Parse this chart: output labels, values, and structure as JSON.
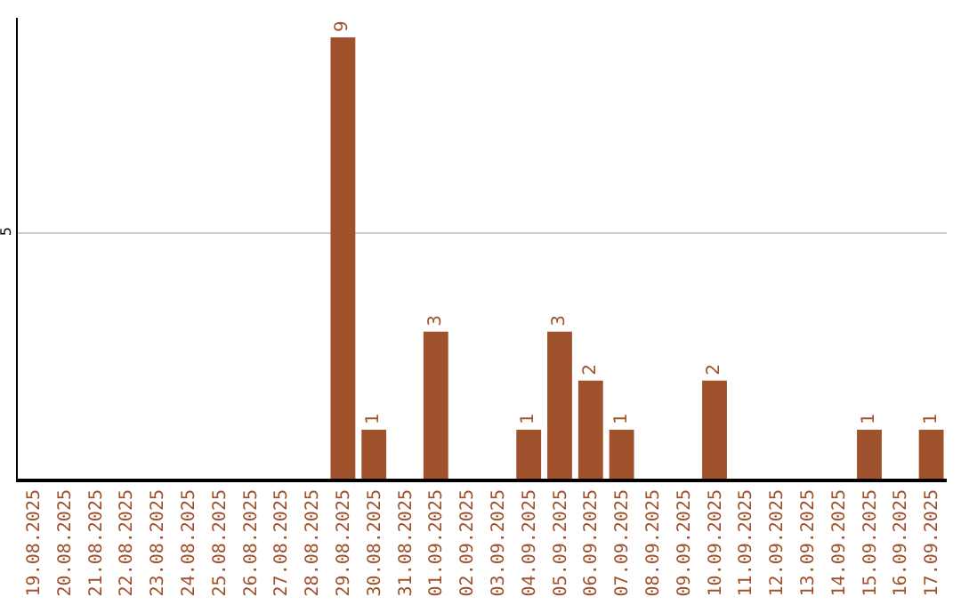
{
  "chart_data": {
    "type": "bar",
    "categories": [
      "19.08.2025",
      "20.08.2025",
      "21.08.2025",
      "22.08.2025",
      "23.08.2025",
      "24.08.2025",
      "25.08.2025",
      "26.08.2025",
      "27.08.2025",
      "28.08.2025",
      "29.08.2025",
      "30.08.2025",
      "31.08.2025",
      "01.09.2025",
      "02.09.2025",
      "03.09.2025",
      "04.09.2025",
      "05.09.2025",
      "06.09.2025",
      "07.09.2025",
      "08.09.2025",
      "09.09.2025",
      "10.09.2025",
      "11.09.2025",
      "12.09.2025",
      "13.09.2025",
      "14.09.2025",
      "15.09.2025",
      "16.09.2025",
      "17.09.2025"
    ],
    "values": [
      0,
      0,
      0,
      0,
      0,
      0,
      0,
      0,
      0,
      0,
      9,
      1,
      0,
      3,
      0,
      0,
      1,
      3,
      2,
      1,
      0,
      0,
      2,
      0,
      0,
      0,
      0,
      1,
      0,
      1
    ],
    "value_labels": [
      null,
      null,
      null,
      null,
      null,
      null,
      null,
      null,
      null,
      null,
      "9",
      "1",
      null,
      "3",
      null,
      null,
      "1",
      "3",
      "2",
      "1",
      null,
      null,
      "2",
      null,
      null,
      null,
      null,
      "1",
      null,
      "1"
    ],
    "color": "#a0522d",
    "ylim": [
      0,
      9.4
    ],
    "yticks": [
      5
    ],
    "grid": "y",
    "legend": false
  }
}
